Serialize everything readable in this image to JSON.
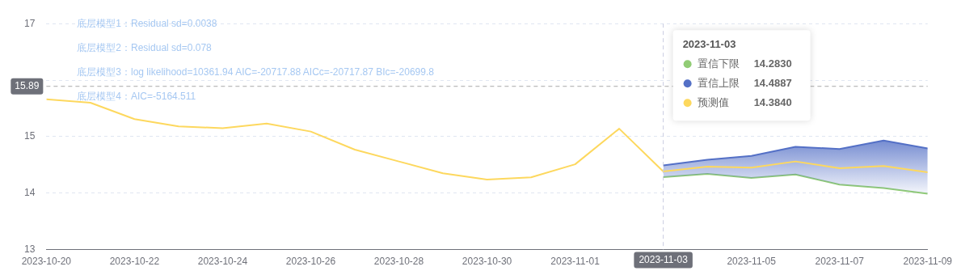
{
  "chart_data": {
    "type": "line",
    "x": [
      "2023-10-20",
      "2023-10-21",
      "2023-10-22",
      "2023-10-23",
      "2023-10-24",
      "2023-10-25",
      "2023-10-26",
      "2023-10-27",
      "2023-10-28",
      "2023-10-29",
      "2023-10-30",
      "2023-10-31",
      "2023-11-01",
      "2023-11-02",
      "2023-11-03",
      "2023-11-04",
      "2023-11-05",
      "2023-11-06",
      "2023-11-07",
      "2023-11-08",
      "2023-11-09"
    ],
    "series": [
      {
        "name": "置信下限",
        "color": "#91cc75",
        "values": [
          null,
          null,
          null,
          null,
          null,
          null,
          null,
          null,
          null,
          null,
          null,
          null,
          null,
          null,
          14.283,
          14.34,
          14.27,
          14.33,
          14.15,
          14.09,
          13.99
        ]
      },
      {
        "name": "置信上限",
        "type": "area",
        "color": "#5470c6",
        "values": [
          null,
          null,
          null,
          null,
          null,
          null,
          null,
          null,
          null,
          null,
          null,
          null,
          null,
          null,
          14.4887,
          14.59,
          14.66,
          14.82,
          14.78,
          14.93,
          14.79
        ]
      },
      {
        "name": "预测值",
        "color": "#fdd85e",
        "values": [
          15.66,
          15.6,
          15.31,
          15.18,
          15.15,
          15.23,
          15.09,
          14.77,
          14.56,
          14.35,
          14.24,
          14.28,
          14.51,
          15.14,
          14.384,
          14.47,
          14.45,
          14.56,
          14.44,
          14.48,
          14.37
        ]
      }
    ],
    "xlim": [
      "2023-10-20",
      "2023-11-09"
    ],
    "xticks": [
      "2023-10-20",
      "2023-10-22",
      "2023-10-24",
      "2023-10-26",
      "2023-10-28",
      "2023-10-30",
      "2023-11-01",
      "2023-11-03",
      "2023-11-05",
      "2023-11-07",
      "2023-11-09"
    ],
    "ylim": [
      13,
      17
    ],
    "yticks": [
      13,
      14,
      15,
      {
        "value": 16,
        "label": null
      },
      17
    ],
    "grid": "y",
    "legend": "top right",
    "marker": "none",
    "line_style": "solid",
    "ref_lines": [
      {
        "axis": "y",
        "value": 15.89,
        "label": "15.89",
        "color": "#aaaaaa",
        "line_style": "dashed"
      },
      {
        "axis": "x",
        "value": "2023-11-03",
        "label": "2023-11-03",
        "color": "#c8cbe0",
        "line_style": "dashed"
      }
    ],
    "annotations": [
      "底层模型1：Residual sd=0.0038",
      "底层模型2：Residual sd=0.078",
      "底层模型3：log likelihood=10361.94 AIC=-20717.88 AICc=-20717.87 BIc=-20699.8",
      "底层模型4：AIC=-5164.511",
      "2023-11-03",
      "14.2830",
      "14.4887",
      "14.3840"
    ]
  }
}
